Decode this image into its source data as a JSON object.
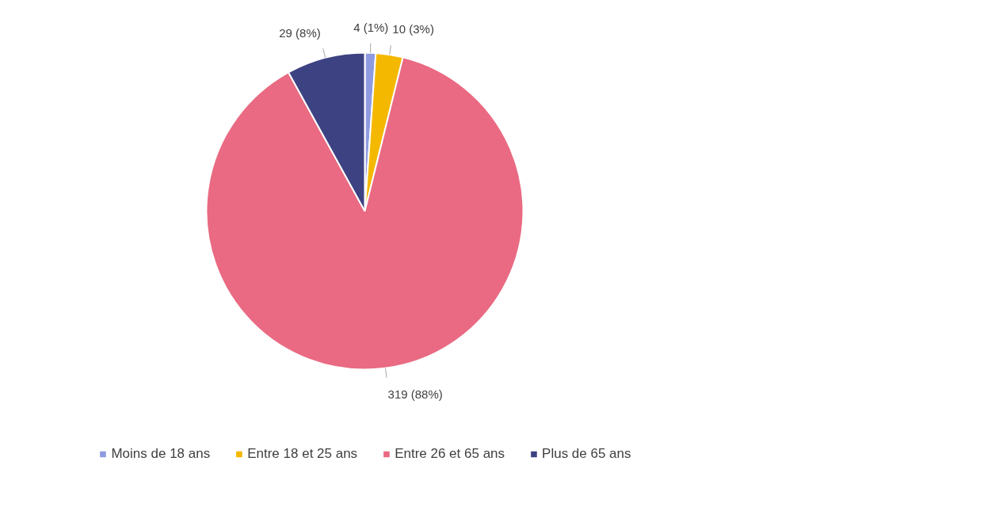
{
  "chart_data": {
    "type": "pie",
    "categories": [
      "Moins de 18 ans",
      "Entre 18 et 25 ans",
      "Entre 26 et 65 ans",
      "Plus de 65 ans"
    ],
    "values": [
      4,
      10,
      319,
      29
    ],
    "colors": [
      "#8f9be0",
      "#f5b800",
      "#e96a82",
      "#3d4282"
    ],
    "value_labels": [
      "4 (1%)",
      "10 (3%)",
      "319 (88%)",
      "29 (8%)"
    ],
    "legend": "bottom"
  }
}
